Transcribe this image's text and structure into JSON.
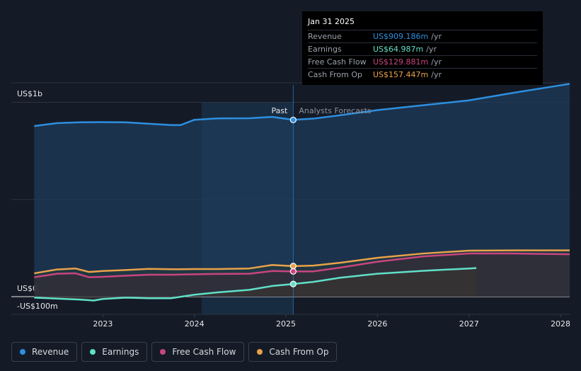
{
  "chart_data": {
    "type": "area",
    "y_unit_label": "US$",
    "y_ticks": [
      {
        "value": 1000,
        "label": "US$1b"
      },
      {
        "value": 0,
        "label": "US$0"
      },
      {
        "value": -100,
        "label": "-US$100m"
      }
    ],
    "ylim": [
      -100,
      1100
    ],
    "x_ticks": [
      "2023",
      "2024",
      "2025",
      "2026",
      "2027",
      "2028"
    ],
    "past_label": "Past",
    "forecast_label": "Analysts Forecasts",
    "series": [
      {
        "name": "Revenue",
        "color": "#2d8fe0",
        "x": [
          2022.25,
          2022.5,
          2022.75,
          2023.0,
          2023.25,
          2023.5,
          2023.75,
          2023.85,
          2024.0,
          2024.25,
          2024.6,
          2024.85,
          2025.08,
          2025.3,
          2025.6,
          2026.0,
          2026.5,
          2027.0,
          2027.5,
          2028.1
        ],
        "y": [
          878,
          893,
          897,
          898,
          897,
          890,
          883,
          883,
          910,
          917,
          918,
          925,
          910,
          916,
          934,
          960,
          985,
          1010,
          1050,
          1095
        ]
      },
      {
        "name": "Earnings",
        "color": "#5fe0c8",
        "x": [
          2022.25,
          2022.5,
          2022.75,
          2022.9,
          2023.0,
          2023.25,
          2023.5,
          2023.75,
          2024.0,
          2024.25,
          2024.6,
          2024.85,
          2025.08,
          2025.3,
          2025.6,
          2026.0,
          2026.5,
          2027.0,
          2027.08
        ],
        "y": [
          -5,
          -10,
          -15,
          -20,
          -12,
          -5,
          -8,
          -8,
          10,
          22,
          35,
          55,
          65,
          76,
          98,
          118,
          133,
          145,
          147
        ]
      },
      {
        "name": "Free Cash Flow",
        "color": "#c9457e",
        "x": [
          2022.25,
          2022.5,
          2022.7,
          2022.85,
          2023.0,
          2023.25,
          2023.5,
          2023.75,
          2024.0,
          2024.25,
          2024.6,
          2024.85,
          2025.08,
          2025.3,
          2025.6,
          2026.0,
          2026.5,
          2027.0,
          2027.5,
          2028.1
        ],
        "y": [
          100,
          118,
          120,
          100,
          102,
          108,
          113,
          113,
          115,
          117,
          118,
          132,
          130,
          130,
          150,
          180,
          207,
          222,
          222,
          218
        ]
      },
      {
        "name": "Cash From Op",
        "color": "#e8a24a",
        "x": [
          2022.25,
          2022.5,
          2022.7,
          2022.85,
          2023.0,
          2023.25,
          2023.5,
          2023.75,
          2024.0,
          2024.25,
          2024.6,
          2024.85,
          2025.08,
          2025.3,
          2025.6,
          2026.0,
          2026.5,
          2027.0,
          2027.5,
          2028.1
        ],
        "y": [
          120,
          140,
          145,
          127,
          132,
          137,
          143,
          141,
          142,
          142,
          145,
          163,
          157,
          160,
          175,
          200,
          222,
          237,
          238,
          238
        ]
      }
    ],
    "past_end_x": 2025.08,
    "highlight_start_x": 2024.08,
    "tooltip": {
      "date": "Jan 31 2025",
      "rows": [
        {
          "label": "Revenue",
          "value": "US$909.186m",
          "unit": "/yr",
          "color": "#2d8fe0"
        },
        {
          "label": "Earnings",
          "value": "US$64.987m",
          "unit": "/yr",
          "color": "#5fe0c8"
        },
        {
          "label": "Free Cash Flow",
          "value": "US$129.881m",
          "unit": "/yr",
          "color": "#c9457e"
        },
        {
          "label": "Cash From Op",
          "value": "US$157.447m",
          "unit": "/yr",
          "color": "#e8a24a"
        }
      ]
    }
  },
  "legend": [
    {
      "label": "Revenue",
      "color": "#2d8fe0"
    },
    {
      "label": "Earnings",
      "color": "#5fe0c8"
    },
    {
      "label": "Free Cash Flow",
      "color": "#c9457e"
    },
    {
      "label": "Cash From Op",
      "color": "#e8a24a"
    }
  ]
}
